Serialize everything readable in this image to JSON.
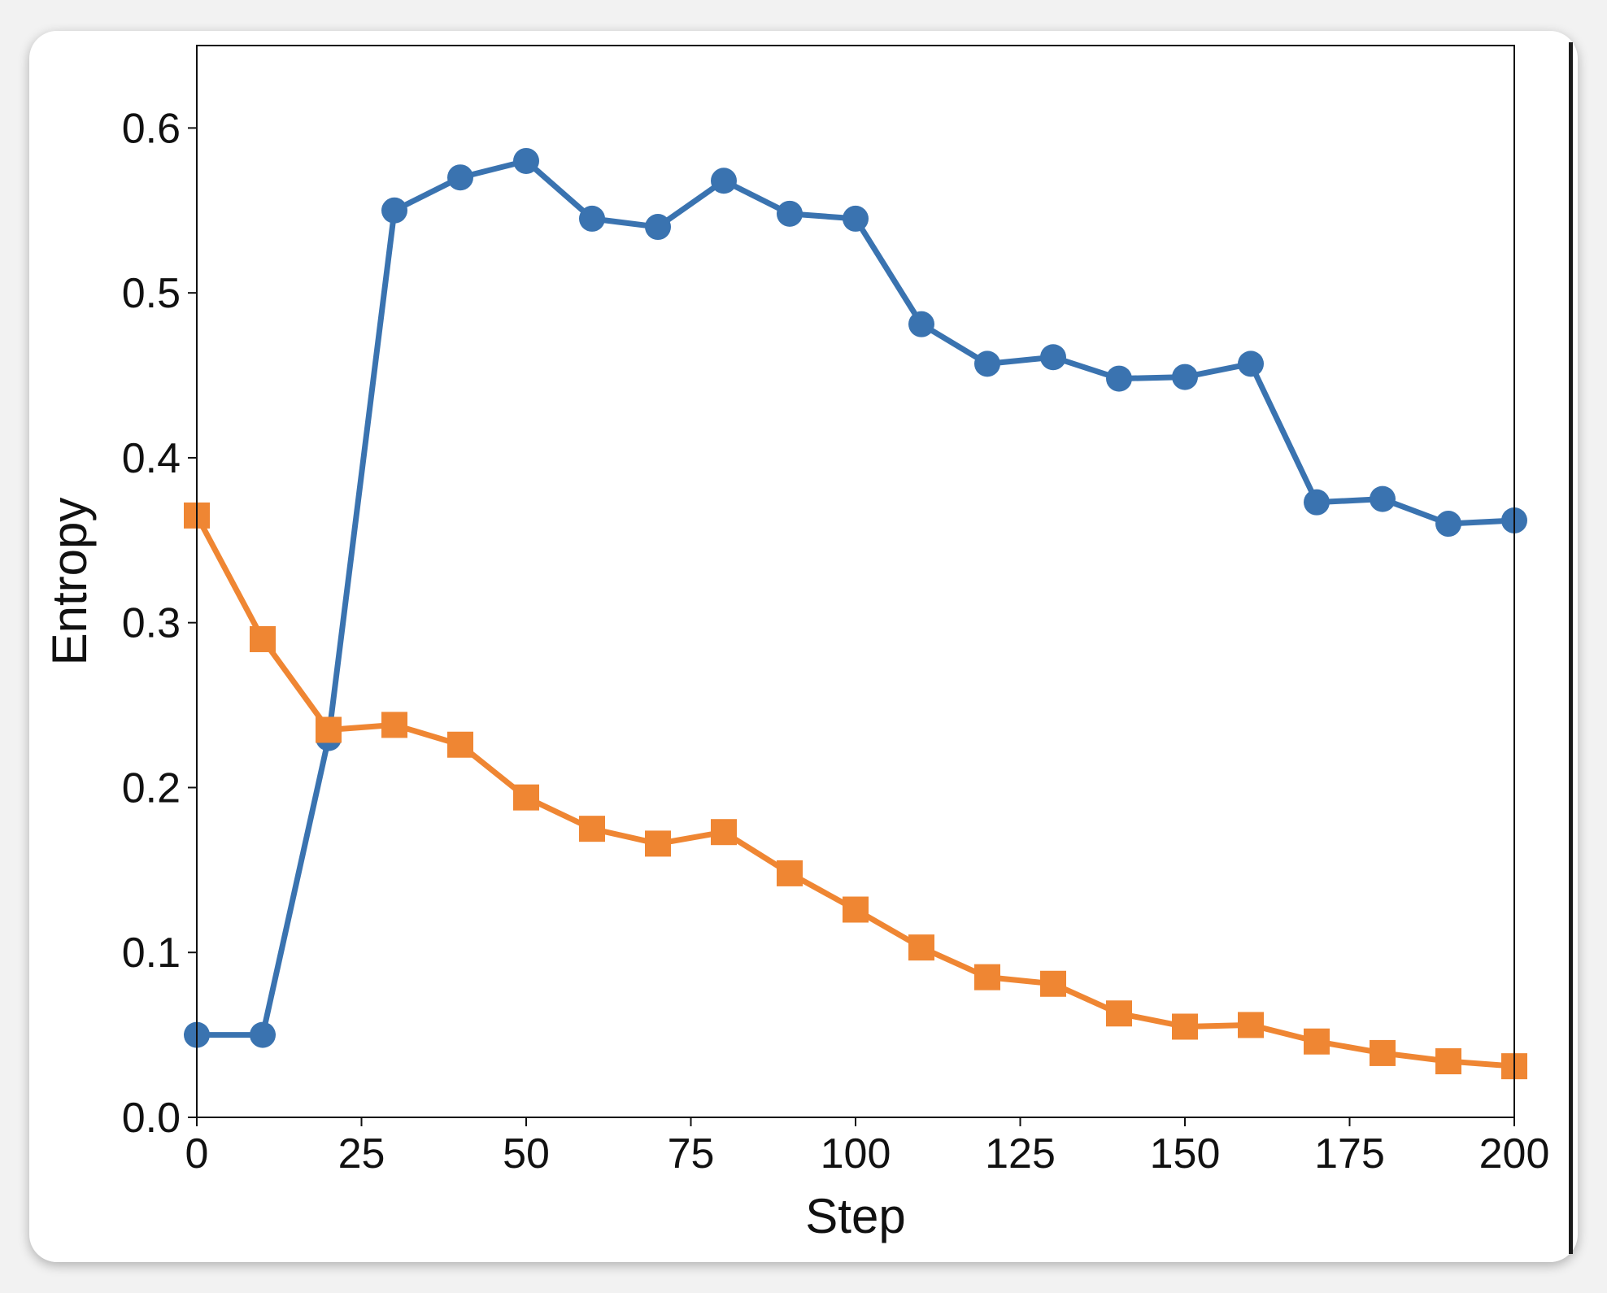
{
  "chart_data": {
    "type": "line",
    "title": "",
    "xlabel": "Step",
    "ylabel": "Entropy",
    "xlim": [
      0,
      200
    ],
    "ylim": [
      0,
      0.65
    ],
    "xticks": [
      "0",
      "25",
      "50",
      "75",
      "100",
      "125",
      "150",
      "175",
      "200"
    ],
    "yticks": [
      "0.0",
      "0.1",
      "0.2",
      "0.3",
      "0.4",
      "0.5",
      "0.6"
    ],
    "grid": false,
    "legend": "none",
    "x": [
      0,
      10,
      20,
      30,
      40,
      50,
      60,
      70,
      80,
      90,
      100,
      110,
      120,
      130,
      140,
      150,
      160,
      170,
      180,
      190,
      200
    ],
    "series": [
      {
        "marker": "circle",
        "color": "#3a73b0",
        "values": [
          0.05,
          0.05,
          0.23,
          0.55,
          0.57,
          0.58,
          0.545,
          0.54,
          0.568,
          0.548,
          0.545,
          0.481,
          0.457,
          0.461,
          0.448,
          0.449,
          0.457,
          0.373,
          0.375,
          0.36,
          0.362
        ]
      },
      {
        "marker": "square",
        "color": "#ef8633",
        "values": [
          0.365,
          0.29,
          0.235,
          0.238,
          0.226,
          0.194,
          0.175,
          0.166,
          0.173,
          0.148,
          0.126,
          0.103,
          0.085,
          0.081,
          0.063,
          0.055,
          0.056,
          0.046,
          0.039,
          0.034,
          0.031
        ]
      }
    ]
  }
}
